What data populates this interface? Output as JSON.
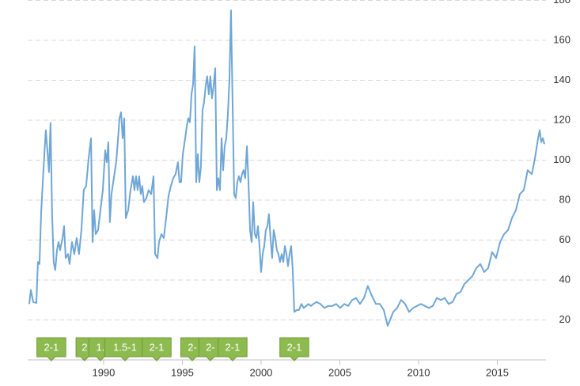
{
  "chart_data": {
    "type": "line",
    "xlim": [
      1985.18,
      2018.09
    ],
    "xticks": [
      1990,
      1995,
      2000,
      2005,
      2010,
      2015
    ],
    "ylim": [
      0,
      180
    ],
    "yticks": [
      20,
      40,
      60,
      80,
      100,
      120,
      140,
      160,
      180
    ],
    "grid": true,
    "x": [
      1985.28,
      1985.38,
      1985.53,
      1985.73,
      1985.83,
      1985.93,
      1986.03,
      1986.18,
      1986.33,
      1986.43,
      1986.53,
      1986.63,
      1986.73,
      1986.83,
      1986.93,
      1987.04,
      1987.14,
      1987.24,
      1987.39,
      1987.49,
      1987.59,
      1987.74,
      1987.84,
      1987.99,
      1988.14,
      1988.29,
      1988.44,
      1988.59,
      1988.74,
      1988.89,
      1989.05,
      1989.2,
      1989.3,
      1989.4,
      1989.5,
      1989.65,
      1989.8,
      1989.95,
      1990.1,
      1990.2,
      1990.3,
      1990.4,
      1990.5,
      1990.65,
      1990.8,
      1990.9,
      1991.01,
      1991.11,
      1991.21,
      1991.31,
      1991.41,
      1991.56,
      1991.71,
      1991.86,
      1991.96,
      1992.06,
      1992.16,
      1992.26,
      1992.36,
      1992.46,
      1992.56,
      1992.71,
      1992.86,
      1993.02,
      1993.17,
      1993.27,
      1993.42,
      1993.52,
      1993.67,
      1993.82,
      1993.97,
      1994.12,
      1994.27,
      1994.42,
      1994.57,
      1994.72,
      1994.82,
      1994.92,
      1995.03,
      1995.18,
      1995.28,
      1995.38,
      1995.48,
      1995.58,
      1995.68,
      1995.78,
      1995.88,
      1995.98,
      1996.08,
      1996.18,
      1996.28,
      1996.38,
      1996.48,
      1996.58,
      1996.68,
      1996.78,
      1996.88,
      1996.98,
      1997.09,
      1997.19,
      1997.29,
      1997.39,
      1997.49,
      1997.59,
      1997.69,
      1997.79,
      1997.89,
      1997.99,
      1998.09,
      1998.19,
      1998.29,
      1998.39,
      1998.49,
      1998.59,
      1998.69,
      1998.79,
      1998.89,
      1998.99,
      1999.1,
      1999.2,
      1999.3,
      1999.4,
      1999.5,
      1999.6,
      1999.7,
      1999.8,
      1999.9,
      2000.0,
      2000.1,
      2000.2,
      2000.3,
      2000.4,
      2000.5,
      2000.6,
      2000.7,
      2000.8,
      2000.9,
      2001.0,
      2001.1,
      2001.2,
      2001.31,
      2001.41,
      2001.51,
      2001.61,
      2001.71,
      2001.81,
      2001.91,
      2002.01,
      2002.11,
      2002.26,
      2002.41,
      2002.56,
      2002.71,
      2002.86,
      2003.01,
      2003.17,
      2003.32,
      2003.52,
      2003.77,
      2004.02,
      2004.27,
      2004.52,
      2004.77,
      2005.02,
      2005.28,
      2005.53,
      2005.78,
      2006.03,
      2006.28,
      2006.53,
      2006.78,
      2007.04,
      2007.29,
      2007.54,
      2007.79,
      2008.04,
      2008.19,
      2008.39,
      2008.64,
      2008.89,
      2009.15,
      2009.4,
      2009.65,
      2009.9,
      2010.15,
      2010.4,
      2010.65,
      2010.9,
      2011.16,
      2011.41,
      2011.66,
      2011.91,
      2012.16,
      2012.41,
      2012.66,
      2012.91,
      2013.17,
      2013.42,
      2013.67,
      2013.92,
      2014.17,
      2014.42,
      2014.67,
      2014.92,
      2015.18,
      2015.43,
      2015.68,
      2015.93,
      2016.18,
      2016.43,
      2016.68,
      2016.93,
      2017.19,
      2017.39,
      2017.59,
      2017.69,
      2017.79,
      2017.89,
      2017.99
    ],
    "series": [
      {
        "color": "#6fa6d6",
        "values": [
          28,
          35,
          29,
          28.5,
          49,
          48,
          73,
          95,
          115,
          105,
          94,
          118.6,
          73,
          49,
          45,
          55,
          59,
          55,
          61,
          67,
          51,
          53,
          48,
          59,
          53,
          61,
          53,
          65,
          85,
          87,
          101,
          111,
          59,
          75,
          63,
          65,
          75,
          85,
          105,
          99,
          109,
          69,
          83,
          91,
          99,
          109,
          121,
          124,
          111,
          121,
          71,
          75,
          85,
          92,
          85,
          92,
          85,
          92,
          83,
          87,
          79,
          81,
          85,
          83,
          92,
          53,
          51,
          59,
          63,
          61,
          71,
          82,
          87,
          91,
          93,
          99,
          89,
          89,
          103,
          111,
          117,
          121,
          119,
          133,
          138,
          157,
          89,
          103,
          89,
          97,
          125,
          129,
          137,
          142,
          133,
          142,
          131,
          137,
          146,
          85,
          91,
          85,
          111,
          95,
          107,
          111,
          123,
          140,
          175,
          129,
          83,
          81,
          89,
          92,
          89,
          93,
          95,
          91,
          107,
          89,
          65,
          59,
          79,
          63,
          61,
          67,
          57,
          44,
          53,
          57,
          65,
          67,
          73,
          61,
          51,
          65,
          61,
          55,
          53,
          49,
          53,
          49,
          57,
          53,
          47,
          53,
          57,
          45,
          24,
          25,
          25,
          28,
          26,
          27,
          28,
          27,
          28,
          29,
          28,
          26,
          27,
          27,
          28,
          26,
          28,
          27,
          30,
          31,
          28,
          31,
          37,
          32,
          28,
          28,
          25,
          17,
          20,
          24,
          26,
          30,
          28,
          24,
          26,
          27,
          28,
          27,
          26,
          27,
          31,
          30,
          31,
          28,
          29,
          33,
          34,
          38,
          40,
          42,
          46,
          48,
          44,
          46,
          54,
          51,
          59,
          63,
          65,
          71,
          75,
          83,
          85,
          95,
          93,
          101,
          111,
          115,
          109,
          111,
          108
        ]
      }
    ],
    "annotations": [
      {
        "x": 1986.68,
        "label": "2-1"
      },
      {
        "x": 1988.79,
        "label": "2"
      },
      {
        "x": 1989.8,
        "label": "1."
      },
      {
        "x": 1991.36,
        "label": "1.5-1"
      },
      {
        "x": 1993.37,
        "label": "2-1"
      },
      {
        "x": 1995.63,
        "label": "2-"
      },
      {
        "x": 1996.78,
        "label": "2-"
      },
      {
        "x": 1998.19,
        "label": "2-1"
      },
      {
        "x": 2002.11,
        "label": "2-1"
      }
    ]
  }
}
